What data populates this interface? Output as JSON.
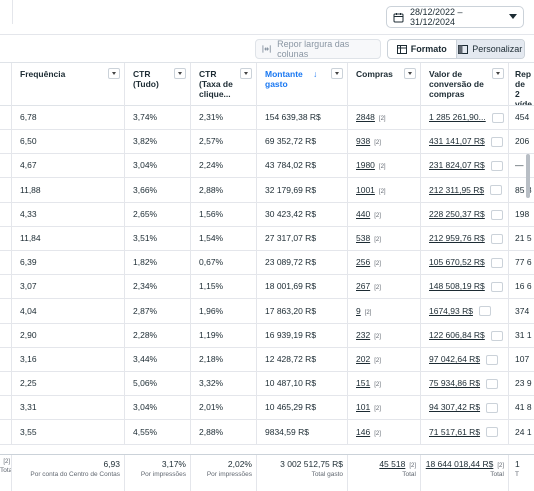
{
  "date_range": {
    "label": "28/12/2022 – 31/12/2024"
  },
  "toolbar": {
    "reset_label": "Repor largura das colunas",
    "format_label": "Formato",
    "customize_label": "Personalizar"
  },
  "headers": {
    "freq": "Frequência",
    "ctr_all": "CTR (Tudo)",
    "ctr_link": "CTR (Taxa de clique...",
    "spent": "Montante gasto",
    "purchases": "Compras",
    "conv_value": "Valor de conversão de compras",
    "rep": "Rep de 2 víde"
  },
  "rows": [
    {
      "freq": "6,78",
      "ctr_all": "3,74%",
      "ctr_link": "2,31%",
      "spent": "154 639,38 R$",
      "purchases": "2848",
      "badge": "[2]",
      "conv": "1 285 261,90...",
      "rep": "454"
    },
    {
      "freq": "6,50",
      "ctr_all": "3,82%",
      "ctr_link": "2,57%",
      "spent": "69 352,72 R$",
      "purchases": "938",
      "badge": "[2]",
      "conv": "431 141,07 R$",
      "rep": "206"
    },
    {
      "freq": "4,67",
      "ctr_all": "3,04%",
      "ctr_link": "2,24%",
      "spent": "43 784,02 R$",
      "purchases": "1980",
      "badge": "[2]",
      "conv": "231 824,07 R$",
      "rep": "—"
    },
    {
      "freq": "11,88",
      "ctr_all": "3,66%",
      "ctr_link": "2,88%",
      "spent": "32 179,69 R$",
      "purchases": "1001",
      "badge": "[2]",
      "conv": "212 311,95 R$",
      "rep": "85 3"
    },
    {
      "freq": "4,33",
      "ctr_all": "2,65%",
      "ctr_link": "1,56%",
      "spent": "30 423,42 R$",
      "purchases": "440",
      "badge": "[2]",
      "conv": "228 250,37 R$",
      "rep": "198"
    },
    {
      "freq": "11,84",
      "ctr_all": "3,51%",
      "ctr_link": "1,54%",
      "spent": "27 317,07 R$",
      "purchases": "538",
      "badge": "[2]",
      "conv": "212 959,76 R$",
      "rep": "21 5"
    },
    {
      "freq": "6,39",
      "ctr_all": "1,82%",
      "ctr_link": "0,67%",
      "spent": "23 089,72 R$",
      "purchases": "256",
      "badge": "[2]",
      "conv": "105 670,52 R$",
      "rep": "77 6"
    },
    {
      "freq": "3,07",
      "ctr_all": "2,34%",
      "ctr_link": "1,15%",
      "spent": "18 001,69 R$",
      "purchases": "267",
      "badge": "[2]",
      "conv": "148 508,19 R$",
      "rep": "16 6"
    },
    {
      "freq": "4,04",
      "ctr_all": "2,87%",
      "ctr_link": "1,96%",
      "spent": "17 863,20 R$",
      "purchases": "9",
      "badge": "[2]",
      "conv": "1674,93 R$",
      "rep": "374"
    },
    {
      "freq": "2,90",
      "ctr_all": "2,28%",
      "ctr_link": "1,19%",
      "spent": "16 939,19 R$",
      "purchases": "232",
      "badge": "[2]",
      "conv": "122 606,84 R$",
      "rep": "31 1"
    },
    {
      "freq": "3,16",
      "ctr_all": "3,44%",
      "ctr_link": "2,18%",
      "spent": "12 428,72 R$",
      "purchases": "202",
      "badge": "[2]",
      "conv": "97 042,64 R$",
      "rep": "107"
    },
    {
      "freq": "2,25",
      "ctr_all": "5,06%",
      "ctr_link": "3,32%",
      "spent": "10 487,10 R$",
      "purchases": "151",
      "badge": "[2]",
      "conv": "75 934,86 R$",
      "rep": "23 9"
    },
    {
      "freq": "3,31",
      "ctr_all": "3,04%",
      "ctr_link": "2,01%",
      "spent": "10 465,29 R$",
      "purchases": "101",
      "badge": "[2]",
      "conv": "94 307,42 R$",
      "rep": "41 8"
    },
    {
      "freq": "3,55",
      "ctr_all": "4,55%",
      "ctr_link": "2,88%",
      "spent": "9834,59 R$",
      "purchases": "146",
      "badge": "[2]",
      "conv": "71 517,61 R$",
      "rep": "24 1"
    }
  ],
  "footer": {
    "c0_val": "[2]",
    "c0_sub": "Total",
    "freq_val": "6,93",
    "freq_sub": "Por conta do Centro de Contas",
    "ctr_all_val": "3,17%",
    "ctr_all_sub": "Por impressões",
    "ctr_link_val": "2,02%",
    "ctr_link_sub": "Por impressões",
    "spent_val": "3 002 512,75 R$",
    "spent_sub": "Total gasto",
    "purchases_val": "45 518",
    "purchases_badge": "[2]",
    "purchases_sub": "Total",
    "conv_val": "18 644 018,44 R$",
    "conv_badge": "[2]",
    "conv_sub": "Total",
    "rep_val": "1",
    "rep_sub": "T"
  }
}
